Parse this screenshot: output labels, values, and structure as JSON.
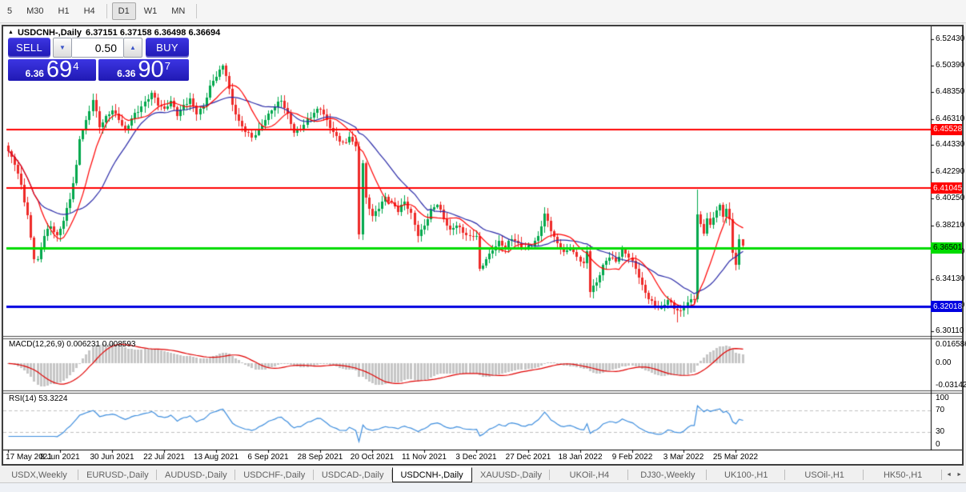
{
  "toolbar": {
    "timeframes": [
      "5",
      "M30",
      "H1",
      "H4",
      "D1",
      "W1",
      "MN"
    ],
    "active_timeframe": "D1"
  },
  "chart_header": {
    "symbol": "USDCNH-,Daily",
    "quote": "6.37151 6.37158 6.36498 6.36694"
  },
  "trade_panel": {
    "sell_label": "SELL",
    "buy_label": "BUY",
    "volume": "0.50",
    "volume_down_icon": "▼",
    "volume_up_icon": "▲",
    "sell_price_small": "6.36",
    "sell_price_big": "69",
    "sell_price_sup": "4",
    "buy_price_small": "6.36",
    "buy_price_big": "90",
    "buy_price_sup": "7",
    "panel_color": "#2a22cc"
  },
  "price_axis": {
    "ticks": [
      "6.52430",
      "6.50390",
      "6.48350",
      "6.46310",
      "6.44330",
      "6.42290",
      "6.40250",
      "6.38210",
      "6.36170",
      "6.34130",
      "6.32090",
      "6.30110"
    ]
  },
  "macd_panel": {
    "label": "MACD(12,26,9) 0.006231 0.008593",
    "axis_top": "0.016586",
    "axis_zero": "0.00",
    "axis_bottom": "-0.03142"
  },
  "rsi_panel": {
    "label": "RSI(14) 53.3224",
    "axis_labels": [
      "100",
      "70",
      "30",
      "0"
    ],
    "levels": [
      70,
      30
    ]
  },
  "date_axis": {
    "labels": [
      "17 May 2021",
      "8 Jun 2021",
      "30 Jun 2021",
      "22 Jul 2021",
      "13 Aug 2021",
      "6 Sep 2021",
      "28 Sep 2021",
      "20 Oct 2021",
      "11 Nov 2021",
      "3 Dec 2021",
      "27 Dec 2021",
      "18 Jan 2022",
      "9 Feb 2022",
      "3 Mar 2022",
      "25 Mar 2022"
    ]
  },
  "tabs": {
    "items": [
      "USDX,Weekly",
      "EURUSD-,Daily",
      "AUDUSD-,Daily",
      "USDCHF-,Daily",
      "USDCAD-,Daily",
      "USDCNH-,Daily",
      "XAUUSD-,Daily",
      "UKOil-,H4",
      "DJ30-,Weekly",
      "UK100-,H1",
      "USOil-,H1",
      "HK50-,H1"
    ],
    "active": "USDCNH-,Daily",
    "scroll_left_icon": "◄",
    "scroll_right_icon": "►"
  },
  "chart_data": {
    "type": "candlestick",
    "symbol": "USDCNH-,Daily",
    "last_ohlc": {
      "open": 6.37151,
      "high": 6.37158,
      "low": 6.36498,
      "close": 6.36694
    },
    "price_range": [
      6.2977,
      6.5338
    ],
    "candle_count": 227,
    "date_tick_indices": [
      0,
      16,
      32,
      48,
      64,
      80,
      96,
      112,
      128,
      144,
      160,
      176,
      192,
      208,
      224
    ],
    "levels": [
      {
        "price": 6.45528,
        "label": "6.45528",
        "color": "#ff0000",
        "text_color": "#ffffff",
        "thickness": 2
      },
      {
        "price": 6.41045,
        "label": "6.41045",
        "color": "#ff0000",
        "text_color": "#ffffff",
        "thickness": 2
      },
      {
        "price": 6.36501,
        "label": "6.36501",
        "color": "#00dc00",
        "text_color": "#000000",
        "thickness": 3
      },
      {
        "price": 6.32018,
        "label": "6.32018",
        "color": "#0000e0",
        "text_color": "#ffffff",
        "thickness": 3
      }
    ],
    "close_keypoints": [
      [
        0,
        6.437
      ],
      [
        2,
        6.428
      ],
      [
        4,
        6.413
      ],
      [
        6,
        6.39
      ],
      [
        8,
        6.358
      ],
      [
        9,
        6.356
      ],
      [
        11,
        6.374
      ],
      [
        13,
        6.38
      ],
      [
        15,
        6.373
      ],
      [
        17,
        6.387
      ],
      [
        19,
        6.404
      ],
      [
        21,
        6.428
      ],
      [
        22,
        6.448
      ],
      [
        24,
        6.46
      ],
      [
        26,
        6.477
      ],
      [
        28,
        6.458
      ],
      [
        30,
        6.466
      ],
      [
        32,
        6.471
      ],
      [
        34,
        6.463
      ],
      [
        36,
        6.452
      ],
      [
        38,
        6.463
      ],
      [
        40,
        6.47
      ],
      [
        42,
        6.477
      ],
      [
        44,
        6.484
      ],
      [
        46,
        6.474
      ],
      [
        48,
        6.469
      ],
      [
        50,
        6.476
      ],
      [
        52,
        6.467
      ],
      [
        54,
        6.475
      ],
      [
        56,
        6.479
      ],
      [
        58,
        6.467
      ],
      [
        60,
        6.471
      ],
      [
        62,
        6.487
      ],
      [
        64,
        6.497
      ],
      [
        66,
        6.505
      ],
      [
        67,
        6.498
      ],
      [
        69,
        6.474
      ],
      [
        71,
        6.46
      ],
      [
        73,
        6.453
      ],
      [
        75,
        6.449
      ],
      [
        77,
        6.456
      ],
      [
        79,
        6.464
      ],
      [
        81,
        6.47
      ],
      [
        84,
        6.476
      ],
      [
        86,
        6.466
      ],
      [
        88,
        6.454
      ],
      [
        90,
        6.457
      ],
      [
        92,
        6.463
      ],
      [
        94,
        6.467
      ],
      [
        96,
        6.47
      ],
      [
        98,
        6.461
      ],
      [
        100,
        6.454
      ],
      [
        102,
        6.448
      ],
      [
        104,
        6.445
      ],
      [
        105,
        6.45
      ],
      [
        107,
        6.44
      ],
      [
        108,
        6.375
      ],
      [
        109,
        6.428
      ],
      [
        110,
        6.402
      ],
      [
        112,
        6.39
      ],
      [
        114,
        6.397
      ],
      [
        116,
        6.404
      ],
      [
        118,
        6.398
      ],
      [
        120,
        6.392
      ],
      [
        122,
        6.4
      ],
      [
        124,
        6.392
      ],
      [
        126,
        6.376
      ],
      [
        128,
        6.382
      ],
      [
        130,
        6.392
      ],
      [
        132,
        6.397
      ],
      [
        134,
        6.387
      ],
      [
        136,
        6.379
      ],
      [
        138,
        6.384
      ],
      [
        140,
        6.377
      ],
      [
        142,
        6.372
      ],
      [
        144,
        6.373
      ],
      [
        145,
        6.347
      ],
      [
        147,
        6.357
      ],
      [
        149,
        6.365
      ],
      [
        151,
        6.37
      ],
      [
        153,
        6.365
      ],
      [
        155,
        6.371
      ],
      [
        157,
        6.367
      ],
      [
        159,
        6.365
      ],
      [
        161,
        6.369
      ],
      [
        163,
        6.374
      ],
      [
        165,
        6.39
      ],
      [
        167,
        6.377
      ],
      [
        169,
        6.367
      ],
      [
        171,
        6.362
      ],
      [
        173,
        6.366
      ],
      [
        175,
        6.358
      ],
      [
        177,
        6.352
      ],
      [
        178,
        6.361
      ],
      [
        179,
        6.331
      ],
      [
        181,
        6.338
      ],
      [
        183,
        6.352
      ],
      [
        185,
        6.36
      ],
      [
        187,
        6.355
      ],
      [
        189,
        6.362
      ],
      [
        191,
        6.357
      ],
      [
        193,
        6.349
      ],
      [
        195,
        6.337
      ],
      [
        197,
        6.328
      ],
      [
        199,
        6.321
      ],
      [
        201,
        6.317
      ],
      [
        203,
        6.324
      ],
      [
        205,
        6.319
      ],
      [
        207,
        6.317
      ],
      [
        209,
        6.325
      ],
      [
        211,
        6.327
      ],
      [
        212,
        6.39
      ],
      [
        213,
        6.381
      ],
      [
        214,
        6.375
      ],
      [
        215,
        6.386
      ],
      [
        216,
        6.381
      ],
      [
        217,
        6.389
      ],
      [
        218,
        6.394
      ],
      [
        219,
        6.398
      ],
      [
        220,
        6.391
      ],
      [
        221,
        6.396
      ],
      [
        222,
        6.387
      ],
      [
        223,
        6.361
      ],
      [
        224,
        6.352
      ],
      [
        225,
        6.3715
      ],
      [
        226,
        6.3669
      ]
    ],
    "wick_overrides": {
      "8": {
        "low": 6.3535
      },
      "9": {
        "low": 6.3545
      },
      "206": {
        "low": 6.308
      },
      "212": {
        "high": 6.4095
      },
      "226": {
        "open": 6.37151,
        "high": 6.37158,
        "low": 6.36498,
        "close": 6.36694
      }
    },
    "ma_fast_period": 10,
    "ma_slow_period": 22,
    "macd": {
      "fast": 12,
      "slow": 26,
      "signal": 9
    },
    "rsi_period": 14,
    "colors": {
      "bull": "#00a84c",
      "bear": "#ee2a28",
      "ma_fast": "#ff0000",
      "ma_slow": "#2a2aa8",
      "macd_hist": "#c6c6c6",
      "macd_signal": "#e00000",
      "rsi_line": "#3e8ede",
      "rsi_level_dash": "#bfbfbf"
    }
  }
}
